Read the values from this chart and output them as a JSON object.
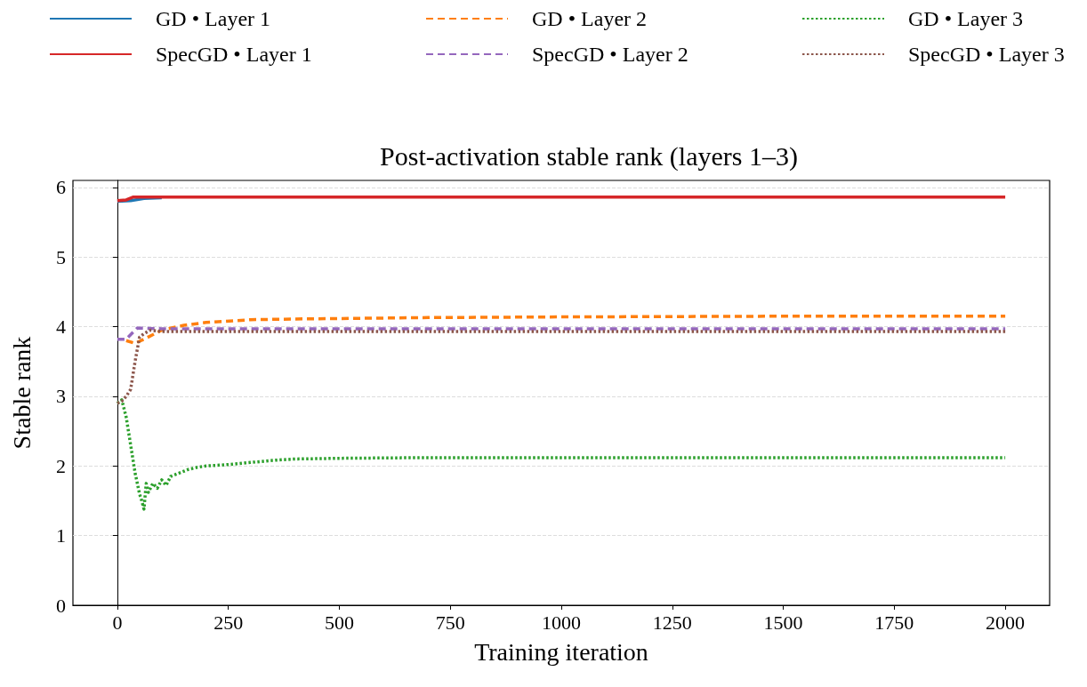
{
  "chart_data": {
    "type": "line",
    "title": "Post-activation stable rank (layers 1–3)",
    "xlabel": "Training iteration",
    "ylabel": "Stable rank",
    "xlim": [
      -100,
      2100
    ],
    "xticks": [
      0,
      250,
      500,
      750,
      1000,
      1250,
      1500,
      1750,
      2000
    ],
    "ylim": [
      0,
      6.1
    ],
    "yticks": [
      0,
      1,
      2,
      3,
      4,
      5,
      6
    ],
    "grid": "y",
    "legend": "top",
    "marker": "none",
    "series": [
      {
        "name": "GD • Layer 1",
        "color": "#1f77b4",
        "line_style": "solid",
        "x": [
          0,
          30,
          60,
          100
        ],
        "values": [
          5.8,
          5.81,
          5.84,
          5.85
        ]
      },
      {
        "name": "GD • Layer 2",
        "color": "#ff7f0e",
        "line_style": "dashed",
        "x": [
          20,
          40,
          60,
          100,
          150,
          200,
          300,
          400,
          700,
          1000,
          1500,
          2000
        ],
        "values": [
          3.8,
          3.76,
          3.82,
          3.95,
          4.02,
          4.06,
          4.1,
          4.11,
          4.13,
          4.14,
          4.15,
          4.15
        ]
      },
      {
        "name": "GD • Layer 3",
        "color": "#2ca02c",
        "line_style": "dotted",
        "x": [
          0,
          10,
          20,
          30,
          40,
          50,
          55,
          60,
          65,
          70,
          80,
          90,
          100,
          110,
          120,
          140,
          160,
          180,
          200,
          250,
          300,
          350,
          400,
          500,
          700,
          1000,
          1500,
          2000
        ],
        "values": [
          2.9,
          2.95,
          2.7,
          2.3,
          1.9,
          1.6,
          1.5,
          1.38,
          1.75,
          1.62,
          1.75,
          1.68,
          1.8,
          1.72,
          1.85,
          1.9,
          1.95,
          1.98,
          2.0,
          2.02,
          2.05,
          2.08,
          2.1,
          2.11,
          2.12,
          2.12,
          2.12,
          2.12
        ]
      },
      {
        "name": "SpecGD • Layer 1",
        "color": "#d62728",
        "line_style": "solid",
        "x": [
          0,
          20,
          35,
          100,
          500,
          1000,
          2000
        ],
        "values": [
          5.81,
          5.82,
          5.86,
          5.86,
          5.86,
          5.86,
          5.86
        ]
      },
      {
        "name": "SpecGD • Layer 2",
        "color": "#9467bd",
        "line_style": "dashed",
        "x": [
          0,
          20,
          45,
          100,
          500,
          1000,
          2000
        ],
        "values": [
          3.82,
          3.82,
          3.98,
          3.97,
          3.97,
          3.97,
          3.97
        ]
      },
      {
        "name": "SpecGD • Layer 3",
        "color": "#8c564b",
        "line_style": "dotted",
        "x": [
          0,
          10,
          20,
          25,
          30,
          40,
          50,
          60,
          75,
          100,
          500,
          1000,
          2000
        ],
        "values": [
          2.9,
          2.93,
          3.0,
          3.05,
          3.1,
          3.5,
          3.85,
          3.9,
          3.95,
          3.93,
          3.93,
          3.93,
          3.93
        ]
      }
    ]
  }
}
